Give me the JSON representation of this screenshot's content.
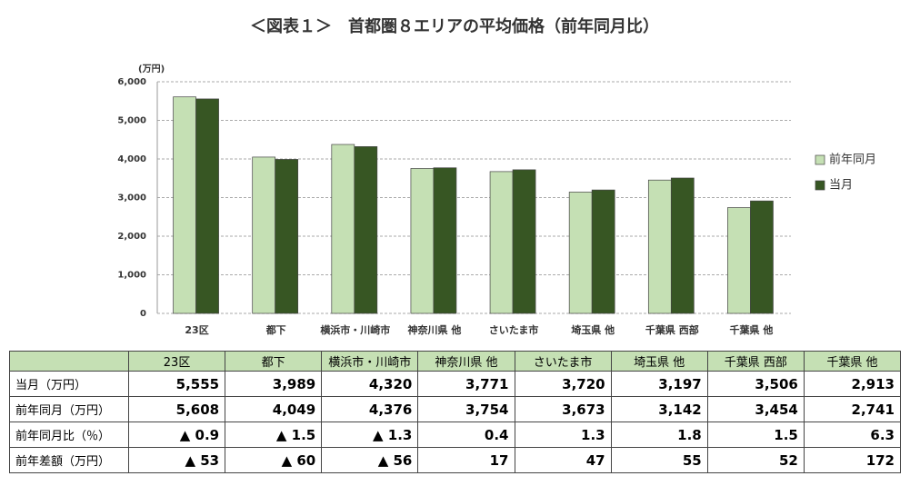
{
  "chart_data": {
    "type": "bar",
    "title": "＜図表１＞　首都圏８エリアの平均価格（前年同月比）",
    "y_unit_label": "(万円)",
    "categories": [
      "23区",
      "都下",
      "横浜市・川崎市",
      "神奈川県 他",
      "さいたま市",
      "埼玉県 他",
      "千葉県 西部",
      "千葉県 他"
    ],
    "series": [
      {
        "name": "前年同月",
        "color": "#c5e0b4",
        "values": [
          5608,
          4049,
          4376,
          3754,
          3673,
          3142,
          3454,
          2741
        ]
      },
      {
        "name": "当月",
        "color": "#375623",
        "values": [
          5555,
          3989,
          4320,
          3771,
          3720,
          3197,
          3506,
          2913
        ]
      }
    ],
    "ylim": [
      0,
      6000
    ],
    "yticks": [
      0,
      {
        "value": 1000,
        "label": "1,000"
      },
      {
        "value": 2000,
        "label": "2,000"
      },
      {
        "value": 3000,
        "label": "3,000"
      },
      {
        "value": 4000,
        "label": "4,000"
      },
      {
        "value": 5000,
        "label": "5,000"
      },
      {
        "value": 6000,
        "label": "6,000"
      }
    ],
    "grid": true,
    "legend": "right"
  },
  "table": {
    "header": [
      "23区",
      "都下",
      "横浜市・川崎市",
      "神奈川県 他",
      "さいたま市",
      "埼玉県 他",
      "千葉県 西部",
      "千葉県 他"
    ],
    "rows": [
      [
        "当月（万円）",
        "5,555",
        "3,989",
        "4,320",
        "3,771",
        "3,720",
        "3,197",
        "3,506",
        "2,913"
      ],
      [
        "前年同月（万円）",
        "5,608",
        "4,049",
        "4,376",
        "3,754",
        "3,673",
        "3,142",
        "3,454",
        "2,741"
      ],
      [
        "前年同月比（％）",
        "▲ 0.9",
        "▲ 1.5",
        "▲ 1.3",
        "0.4",
        "1.3",
        "1.8",
        "1.5",
        "6.3"
      ],
      [
        "前年差額（万円）",
        "▲ 53",
        "▲ 60",
        "▲ 56",
        "17",
        "47",
        "55",
        "52",
        "172"
      ]
    ]
  }
}
